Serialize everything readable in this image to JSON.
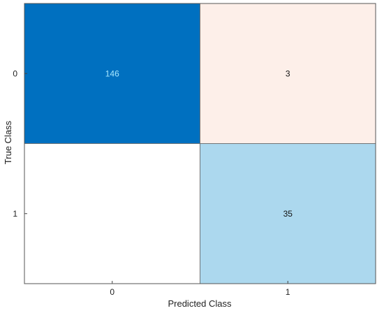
{
  "chart_data": {
    "type": "heatmap",
    "title": "",
    "xlabel": "Predicted Class",
    "ylabel": "True Class",
    "x_categories": [
      "0",
      "1"
    ],
    "y_categories": [
      "0",
      "1"
    ],
    "values": [
      [
        146,
        3
      ],
      [
        null,
        35
      ]
    ],
    "cell_labels": [
      [
        "146",
        "3"
      ],
      [
        "",
        "35"
      ]
    ],
    "cell_colors": [
      [
        "#0070c0",
        "#fdefe9"
      ],
      [
        "#ffffff",
        "#acd8ee"
      ]
    ],
    "text_colors": [
      [
        "#a8e8ff",
        "#111111"
      ],
      [
        "#111111",
        "#111111"
      ]
    ],
    "grid": true
  }
}
